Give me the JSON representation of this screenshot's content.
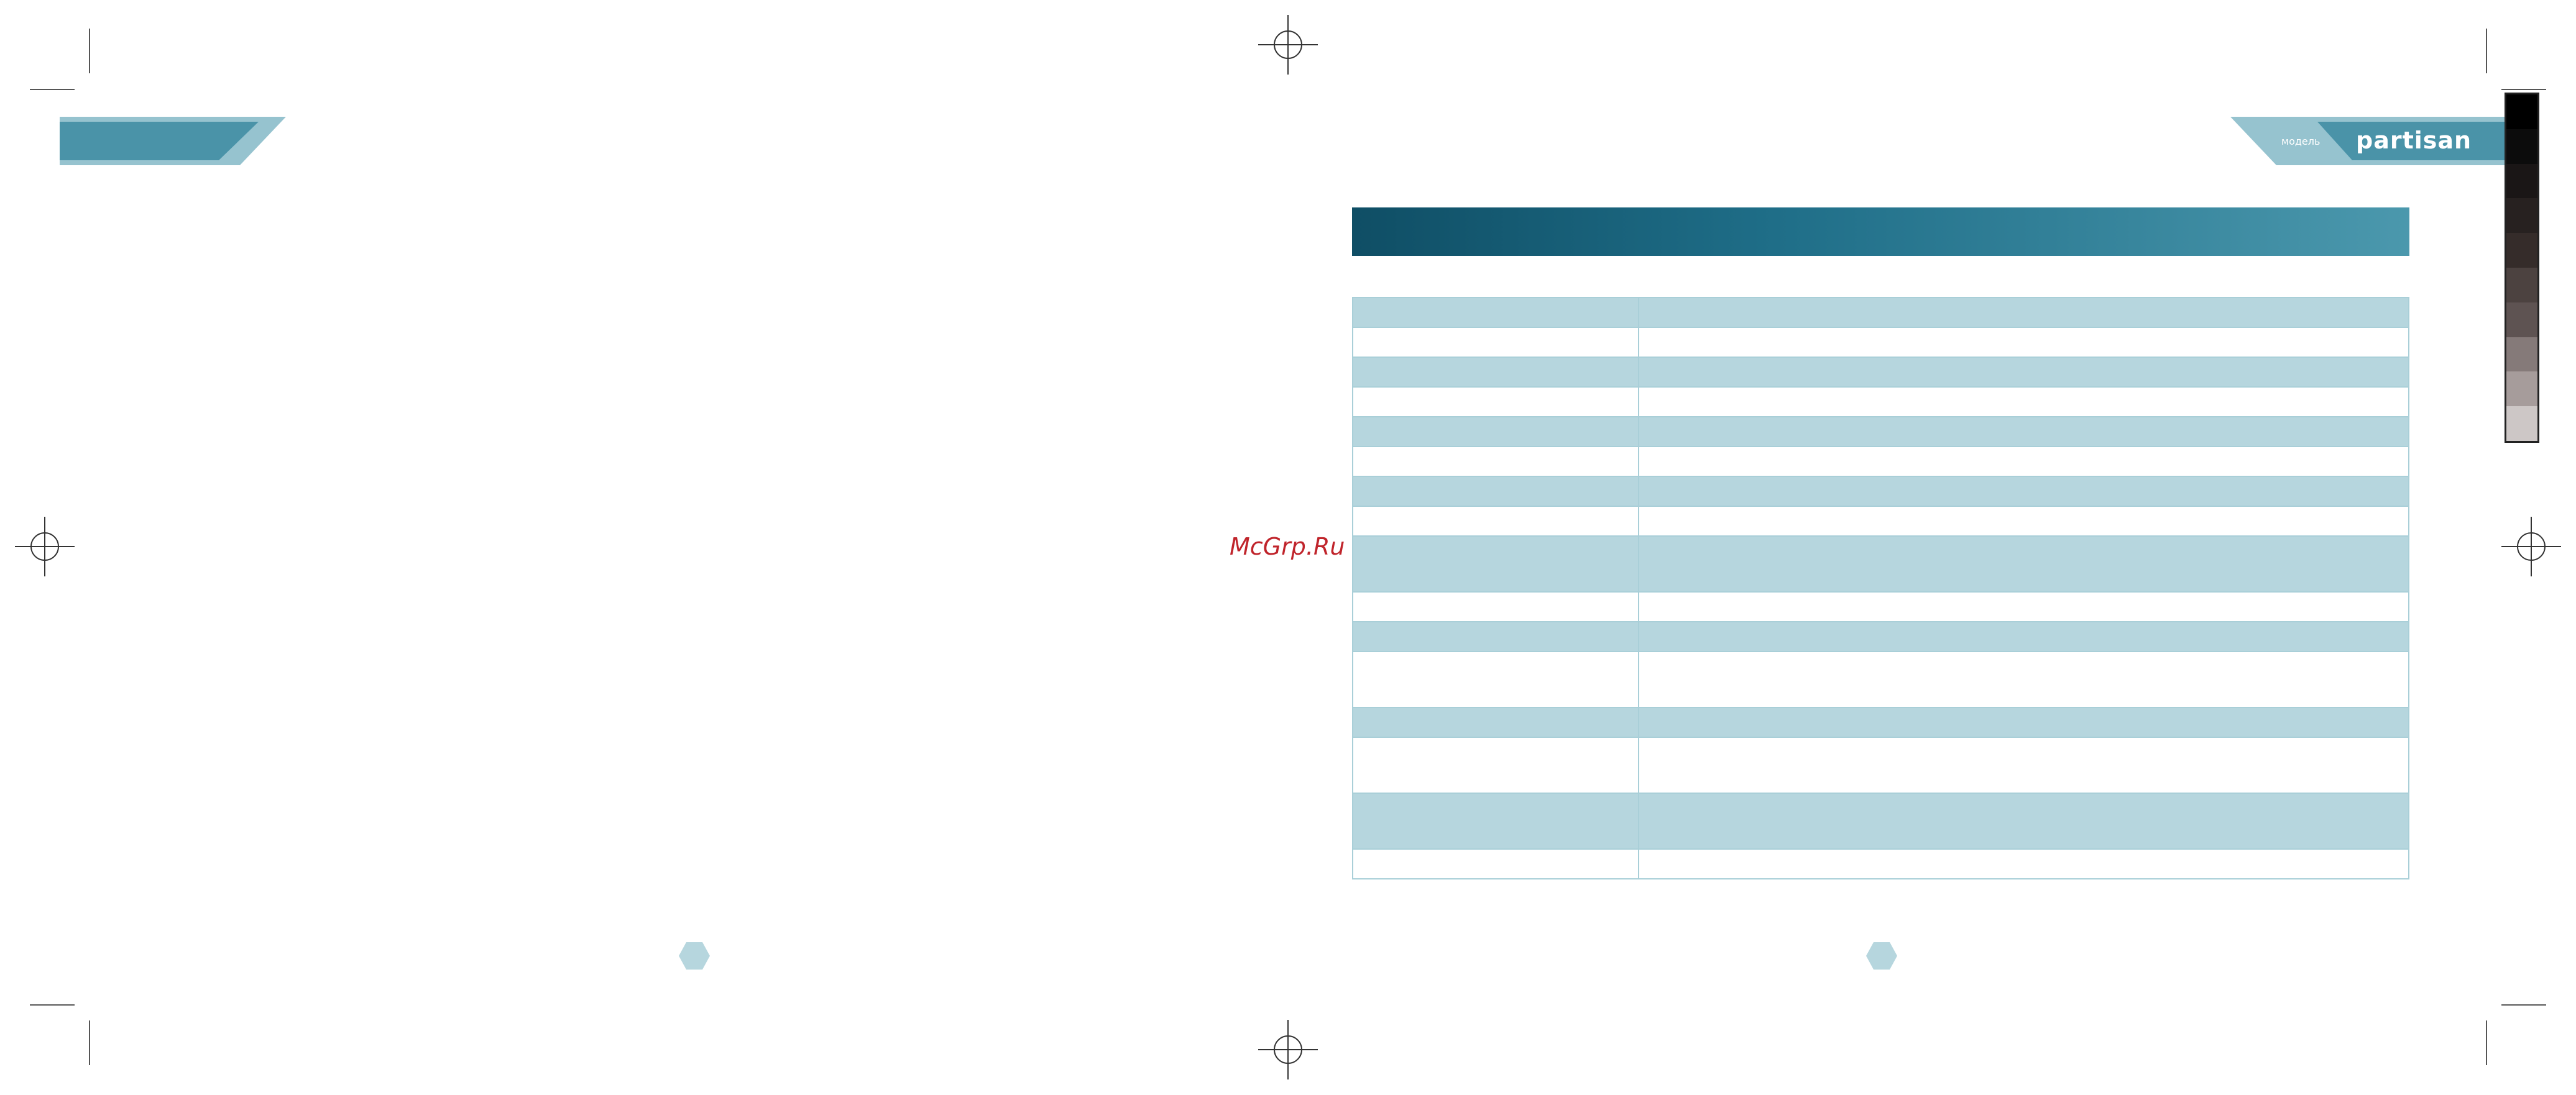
{
  "brand": {
    "name": "partisan",
    "tagline": "",
    "model_label": "модель",
    "model_number": "",
    "primary_color": "#4a93a8",
    "light_color": "#96c3cf"
  },
  "watermark": "McGrp.Ru",
  "title_bar": {
    "text": ""
  },
  "spec_table": {
    "rows": [
      {
        "key": "",
        "value": ""
      },
      {
        "key": "",
        "value": ""
      },
      {
        "key": "",
        "value": ""
      },
      {
        "key": "",
        "value": ""
      },
      {
        "key": "",
        "value": ""
      },
      {
        "key": "",
        "value": ""
      },
      {
        "key": "",
        "value": ""
      },
      {
        "key": "",
        "value": ""
      },
      {
        "key": "",
        "value": ""
      },
      {
        "key": "",
        "value": ""
      },
      {
        "key": "",
        "value": ""
      },
      {
        "key": "",
        "value": ""
      },
      {
        "key": "",
        "value": ""
      },
      {
        "key": "",
        "value": ""
      },
      {
        "key": "",
        "value": ""
      },
      {
        "key": "",
        "value": ""
      },
      {
        "key": "",
        "value": ""
      }
    ]
  },
  "page_numbers": {
    "left": "",
    "right": ""
  },
  "color_bar": [
    "#000000",
    "#0c0c0c",
    "#1a1616",
    "#272120",
    "#352c2a",
    "#4c4240",
    "#5e5352",
    "#857a79",
    "#a69c9b",
    "#cdc7c6"
  ]
}
